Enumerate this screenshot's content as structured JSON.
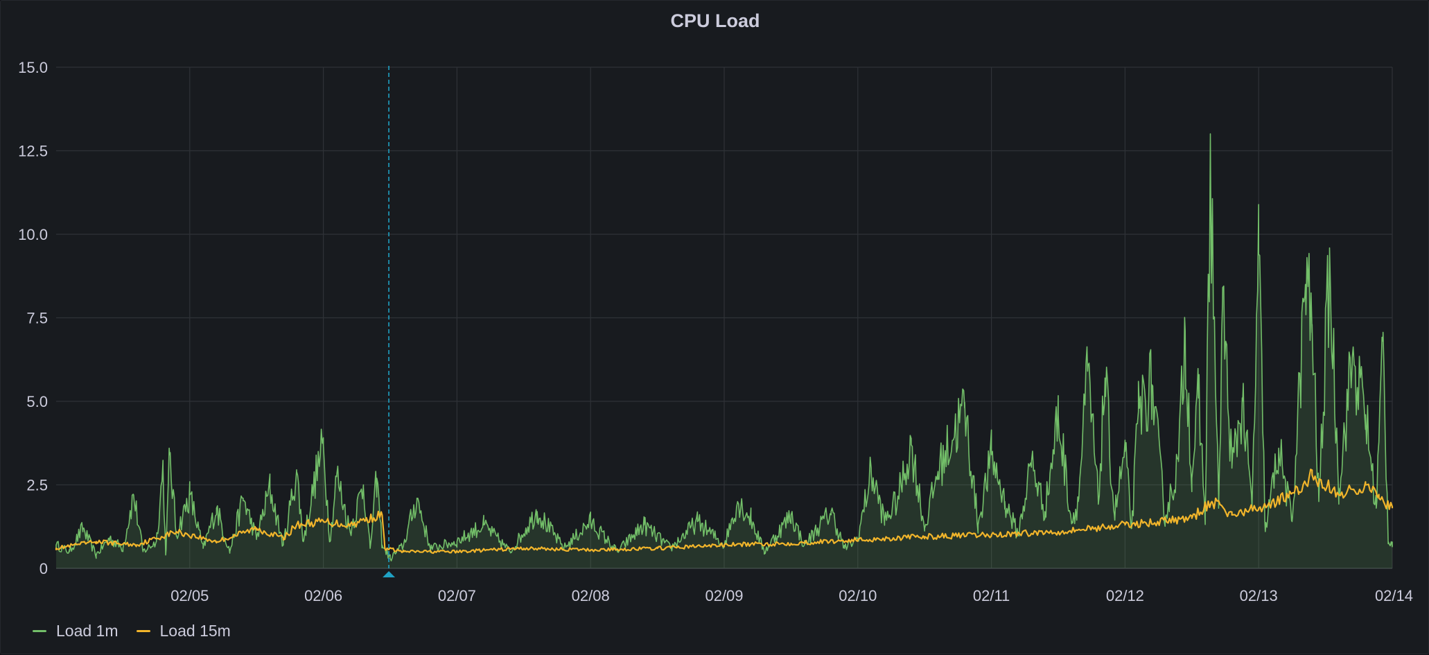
{
  "panel": {
    "title": "CPU Load"
  },
  "chart_data": {
    "type": "line",
    "title": "CPU Load",
    "xlabel": "",
    "ylabel": "",
    "ylim": [
      0,
      15
    ],
    "xlim": [
      "02/04 00:00",
      "02/14 00:00"
    ],
    "y_ticks": [
      "0",
      "2.5",
      "5.0",
      "7.5",
      "10.0",
      "12.5",
      "15.0"
    ],
    "x_ticks": [
      "02/05",
      "02/06",
      "02/07",
      "02/08",
      "02/09",
      "02/10",
      "02/11",
      "02/12",
      "02/13",
      "02/14"
    ],
    "grid": true,
    "legend_position": "bottom-left",
    "annotation": {
      "time": "02/06 11:45",
      "color": "#1fa2c4",
      "style": "dashed"
    },
    "series": [
      {
        "name": "Load 1m",
        "color": "#73bf69",
        "fill": true,
        "x_unit": "days since 02/04 00:00",
        "points": [
          [
            0.0,
            0.7
          ],
          [
            0.1,
            0.5
          ],
          [
            0.2,
            1.2
          ],
          [
            0.3,
            0.4
          ],
          [
            0.4,
            0.9
          ],
          [
            0.5,
            0.6
          ],
          [
            0.58,
            2.2
          ],
          [
            0.65,
            0.5
          ],
          [
            0.75,
            0.8
          ],
          [
            0.8,
            3.0
          ],
          [
            0.82,
            0.4
          ],
          [
            0.85,
            3.4
          ],
          [
            0.9,
            1.0
          ],
          [
            1.0,
            2.2
          ],
          [
            1.1,
            0.6
          ],
          [
            1.2,
            1.8
          ],
          [
            1.3,
            0.5
          ],
          [
            1.4,
            2.1
          ],
          [
            1.5,
            0.9
          ],
          [
            1.6,
            2.4
          ],
          [
            1.7,
            0.7
          ],
          [
            1.8,
            2.9
          ],
          [
            1.85,
            0.8
          ],
          [
            1.95,
            2.9
          ],
          [
            2.0,
            3.7
          ],
          [
            2.05,
            0.8
          ],
          [
            2.1,
            2.8
          ],
          [
            2.2,
            1.1
          ],
          [
            2.3,
            2.5
          ],
          [
            2.35,
            0.6
          ],
          [
            2.4,
            2.7
          ],
          [
            2.44,
            0.7
          ],
          [
            2.5,
            0.3
          ],
          [
            2.6,
            0.7
          ],
          [
            2.7,
            2.1
          ],
          [
            2.8,
            0.6
          ],
          [
            3.0,
            0.8
          ],
          [
            3.2,
            1.3
          ],
          [
            3.4,
            0.5
          ],
          [
            3.6,
            1.7
          ],
          [
            3.8,
            0.6
          ],
          [
            4.0,
            1.4
          ],
          [
            4.2,
            0.5
          ],
          [
            4.4,
            1.3
          ],
          [
            4.6,
            0.6
          ],
          [
            4.8,
            1.4
          ],
          [
            5.0,
            0.7
          ],
          [
            5.1,
            2.0
          ],
          [
            5.2,
            1.5
          ],
          [
            5.3,
            0.5
          ],
          [
            5.5,
            1.6
          ],
          [
            5.6,
            0.7
          ],
          [
            5.8,
            1.7
          ],
          [
            5.9,
            0.6
          ],
          [
            6.0,
            0.9
          ],
          [
            6.1,
            2.9
          ],
          [
            6.2,
            1.4
          ],
          [
            6.3,
            2.1
          ],
          [
            6.4,
            3.7
          ],
          [
            6.5,
            1.2
          ],
          [
            6.6,
            2.9
          ],
          [
            6.8,
            4.8
          ],
          [
            6.9,
            1.3
          ],
          [
            7.0,
            3.4
          ],
          [
            7.1,
            2.0
          ],
          [
            7.2,
            1.0
          ],
          [
            7.3,
            3.2
          ],
          [
            7.4,
            1.7
          ],
          [
            7.5,
            4.6
          ],
          [
            7.6,
            1.4
          ],
          [
            7.65,
            2.0
          ],
          [
            7.72,
            5.9
          ],
          [
            7.8,
            2.0
          ],
          [
            7.85,
            5.7
          ],
          [
            7.92,
            1.6
          ],
          [
            8.0,
            3.5
          ],
          [
            8.05,
            1.2
          ],
          [
            8.1,
            4.7
          ],
          [
            8.2,
            5.5
          ],
          [
            8.3,
            1.5
          ],
          [
            8.4,
            3.2
          ],
          [
            8.45,
            7.1
          ],
          [
            8.5,
            2.7
          ],
          [
            8.55,
            5.1
          ],
          [
            8.6,
            1.6
          ],
          [
            8.64,
            11.9
          ],
          [
            8.7,
            1.8
          ],
          [
            8.73,
            8.0
          ],
          [
            8.8,
            3.0
          ],
          [
            8.88,
            5.0
          ],
          [
            8.95,
            1.8
          ],
          [
            9.0,
            9.4
          ],
          [
            9.05,
            1.1
          ],
          [
            9.15,
            3.6
          ],
          [
            9.25,
            1.4
          ],
          [
            9.35,
            8.5
          ],
          [
            9.4,
            7.3
          ],
          [
            9.45,
            2.0
          ],
          [
            9.53,
            9.0
          ],
          [
            9.6,
            2.4
          ],
          [
            9.7,
            6.3
          ],
          [
            9.8,
            4.6
          ],
          [
            9.88,
            1.8
          ],
          [
            9.93,
            6.8
          ],
          [
            9.97,
            0.8
          ],
          [
            10.0,
            0.8
          ]
        ]
      },
      {
        "name": "Load 15m",
        "color": "#f2b52b",
        "fill": false,
        "x_unit": "days since 02/04 00:00",
        "points": [
          [
            0.0,
            0.6
          ],
          [
            0.3,
            0.8
          ],
          [
            0.6,
            0.7
          ],
          [
            0.9,
            1.1
          ],
          [
            1.2,
            0.8
          ],
          [
            1.5,
            1.2
          ],
          [
            1.7,
            0.9
          ],
          [
            1.8,
            1.3
          ],
          [
            2.0,
            1.4
          ],
          [
            2.2,
            1.3
          ],
          [
            2.35,
            1.5
          ],
          [
            2.44,
            1.6
          ],
          [
            2.46,
            0.6
          ],
          [
            2.6,
            0.5
          ],
          [
            3.0,
            0.5
          ],
          [
            3.5,
            0.6
          ],
          [
            4.0,
            0.55
          ],
          [
            4.5,
            0.6
          ],
          [
            5.0,
            0.7
          ],
          [
            5.5,
            0.75
          ],
          [
            6.0,
            0.85
          ],
          [
            6.5,
            0.95
          ],
          [
            7.0,
            1.0
          ],
          [
            7.5,
            1.1
          ],
          [
            8.0,
            1.3
          ],
          [
            8.5,
            1.5
          ],
          [
            8.65,
            2.0
          ],
          [
            8.8,
            1.6
          ],
          [
            9.0,
            1.8
          ],
          [
            9.3,
            2.3
          ],
          [
            9.4,
            2.8
          ],
          [
            9.6,
            2.2
          ],
          [
            9.8,
            2.5
          ],
          [
            9.9,
            2.1
          ],
          [
            10.0,
            1.8
          ]
        ]
      }
    ]
  },
  "legend": [
    {
      "label": "Load 1m",
      "color": "#73bf69"
    },
    {
      "label": "Load 15m",
      "color": "#f2b52b"
    }
  ]
}
